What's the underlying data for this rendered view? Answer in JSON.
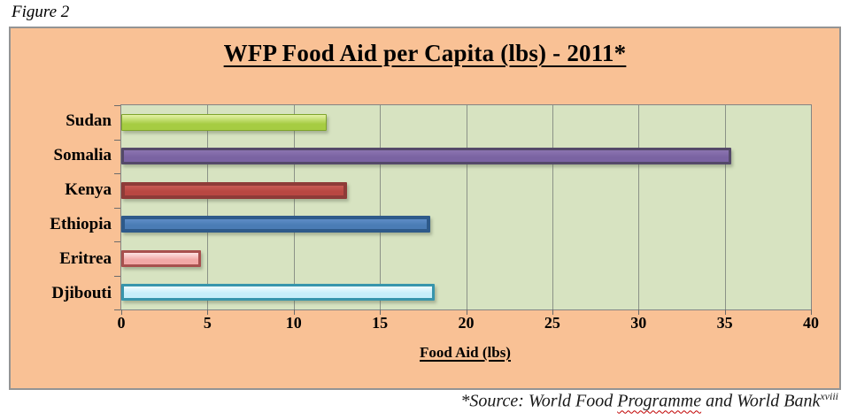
{
  "figure_label": "Figure 2",
  "chart_data": {
    "type": "bar",
    "orientation": "horizontal",
    "title": "WFP Food Aid per Capita (lbs) - 2011*",
    "xlabel": "Food Aid (lbs)",
    "categories": [
      "Sudan",
      "Somalia",
      "Kenya",
      "Ethiopia",
      "Eritrea",
      "Djibouti"
    ],
    "values": [
      11.9,
      35.4,
      13.1,
      17.9,
      4.6,
      18.2
    ],
    "xlim": [
      0,
      40
    ],
    "x_tick_step": 5,
    "x_tick_labels": [
      "0",
      "5",
      "10",
      "15",
      "20",
      "25",
      "30",
      "35",
      "40"
    ],
    "grid": true,
    "legend": "none",
    "chart_bg": "#F9C195",
    "plot_bg": "#D7E3C1",
    "gridline_color": "#8B9287",
    "bars": [
      {
        "name": "Sudan",
        "light": "#E4F2A6",
        "fill": "#A6CC42",
        "border": "#7FA42C",
        "border_width": 1
      },
      {
        "name": "Somalia",
        "light": "#8B74B0",
        "fill": "#7A63A2",
        "border": "#544969",
        "border_width": 3
      },
      {
        "name": "Kenya",
        "light": "#C75A54",
        "fill": "#B94742",
        "border": "#8E3B38",
        "border_width": 4
      },
      {
        "name": "Ethiopia",
        "light": "#5D8CC6",
        "fill": "#4A7CB5",
        "border": "#2E5A8A",
        "border_width": 4
      },
      {
        "name": "Eritrea",
        "light": "#FDE3E3",
        "fill": "#F2A8A6",
        "border": "#A8504E",
        "border_width": 3
      },
      {
        "name": "Djibouti",
        "light": "#EFFAFE",
        "fill": "#C6EEFA",
        "border": "#3795AC",
        "border_width": 3
      }
    ]
  },
  "source_note": {
    "prefix": "*Source: World Food ",
    "wavy_word": "Programme",
    "suffix": " and World Bank",
    "superscript": "xviii"
  }
}
